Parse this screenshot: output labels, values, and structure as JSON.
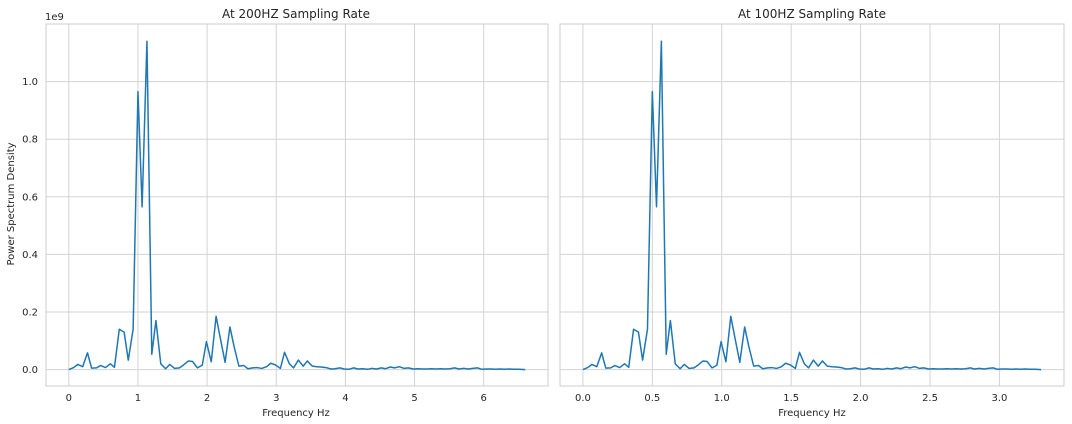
{
  "chart_data": [
    {
      "type": "line",
      "title": "At 200HZ Sampling Rate",
      "xlabel": "Frequency Hz",
      "ylabel": "Power Spectrum Density",
      "y_offset_label": "1e9",
      "xlim": [
        -0.33,
        6.93
      ],
      "ylim": [
        -0.057,
        1.2
      ],
      "xticks": [
        0,
        1,
        2,
        3,
        4,
        5,
        6
      ],
      "xtick_labels": [
        "0",
        "1",
        "2",
        "3",
        "4",
        "5",
        "6"
      ],
      "yticks": [
        0.0,
        0.2,
        0.4,
        0.6,
        0.8,
        1.0
      ],
      "ytick_labels": [
        "0.0",
        "0.2",
        "0.4",
        "0.6",
        "0.8",
        "1.0"
      ],
      "grid": true,
      "color": "#1f77b4",
      "series": [
        {
          "x": [
            0,
            0.07,
            0.13,
            0.2,
            0.27,
            0.33,
            0.4,
            0.46,
            0.53,
            0.6,
            0.66,
            0.73,
            0.8,
            0.86,
            0.93,
            1.0,
            1.06,
            1.13,
            1.2,
            1.26,
            1.33,
            1.4,
            1.46,
            1.53,
            1.6,
            1.66,
            1.73,
            1.79,
            1.86,
            1.93,
            1.99,
            2.06,
            2.13,
            2.19,
            2.26,
            2.33,
            2.39,
            2.46,
            2.53,
            2.59,
            2.66,
            2.72,
            2.79,
            2.86,
            2.92,
            2.99,
            3.06,
            3.12,
            3.19,
            3.25,
            3.32,
            3.39,
            3.45,
            3.52,
            3.59,
            3.65,
            3.72,
            3.79,
            3.85,
            3.92,
            3.98,
            4.05,
            4.12,
            4.18,
            4.25,
            4.32,
            4.38,
            4.45,
            4.52,
            4.58,
            4.65,
            4.71,
            4.78,
            4.85,
            4.91,
            4.98,
            5.05,
            5.11,
            5.18,
            5.24,
            5.31,
            5.38,
            5.44,
            5.51,
            5.58,
            5.64,
            5.71,
            5.78,
            5.84,
            5.91,
            5.97,
            6.04,
            6.11,
            6.17,
            6.24,
            6.31,
            6.37,
            6.44,
            6.51,
            6.6
          ],
          "y": [
            0.0,
            0.007,
            0.018,
            0.01,
            0.058,
            0.005,
            0.006,
            0.014,
            0.007,
            0.02,
            0.008,
            0.14,
            0.13,
            0.033,
            0.14,
            0.965,
            0.565,
            1.14,
            0.053,
            0.17,
            0.02,
            0.003,
            0.018,
            0.004,
            0.006,
            0.016,
            0.03,
            0.028,
            0.006,
            0.015,
            0.097,
            0.027,
            0.185,
            0.11,
            0.025,
            0.148,
            0.08,
            0.012,
            0.014,
            0.003,
            0.006,
            0.007,
            0.004,
            0.01,
            0.022,
            0.016,
            0.004,
            0.06,
            0.02,
            0.006,
            0.033,
            0.012,
            0.03,
            0.012,
            0.01,
            0.009,
            0.007,
            0.002,
            0.003,
            0.006,
            0.002,
            0.001,
            0.006,
            0.002,
            0.003,
            0.001,
            0.004,
            0.002,
            0.006,
            0.003,
            0.009,
            0.006,
            0.01,
            0.004,
            0.006,
            0.002,
            0.003,
            0.002,
            0.002,
            0.003,
            0.002,
            0.003,
            0.002,
            0.003,
            0.006,
            0.002,
            0.004,
            0.002,
            0.004,
            0.006,
            0.001,
            0.002,
            0.002,
            0.001,
            0.002,
            0.001,
            0.002,
            0.001,
            0.001,
            0.0
          ]
        }
      ]
    },
    {
      "type": "line",
      "title": "At 100HZ Sampling Rate",
      "xlabel": "Frequency Hz",
      "ylabel": "",
      "xlim": [
        -0.165,
        3.465
      ],
      "ylim": [
        -0.057,
        1.2
      ],
      "xticks": [
        0.0,
        0.5,
        1.0,
        1.5,
        2.0,
        2.5,
        3.0
      ],
      "xtick_labels": [
        "0.0",
        "0.5",
        "1.0",
        "1.5",
        "2.0",
        "2.5",
        "3.0"
      ],
      "yticks": [
        0.0,
        0.2,
        0.4,
        0.6,
        0.8,
        1.0
      ],
      "grid": true,
      "color": "#1f77b4",
      "series": [
        {
          "x": [
            0,
            0.035,
            0.065,
            0.1,
            0.135,
            0.165,
            0.2,
            0.23,
            0.265,
            0.3,
            0.33,
            0.365,
            0.4,
            0.43,
            0.465,
            0.5,
            0.53,
            0.565,
            0.6,
            0.63,
            0.665,
            0.7,
            0.73,
            0.765,
            0.8,
            0.83,
            0.865,
            0.895,
            0.93,
            0.965,
            0.995,
            1.03,
            1.065,
            1.095,
            1.13,
            1.165,
            1.195,
            1.23,
            1.265,
            1.295,
            1.33,
            1.36,
            1.395,
            1.43,
            1.46,
            1.495,
            1.53,
            1.56,
            1.595,
            1.625,
            1.66,
            1.695,
            1.725,
            1.76,
            1.795,
            1.825,
            1.86,
            1.895,
            1.925,
            1.96,
            1.99,
            2.025,
            2.06,
            2.09,
            2.125,
            2.16,
            2.19,
            2.225,
            2.26,
            2.29,
            2.325,
            2.355,
            2.39,
            2.425,
            2.455,
            2.49,
            2.525,
            2.555,
            2.59,
            2.62,
            2.655,
            2.69,
            2.72,
            2.755,
            2.79,
            2.82,
            2.855,
            2.89,
            2.92,
            2.955,
            2.985,
            3.02,
            3.055,
            3.085,
            3.12,
            3.155,
            3.185,
            3.22,
            3.255,
            3.3
          ],
          "y": [
            0.0,
            0.007,
            0.018,
            0.01,
            0.058,
            0.005,
            0.006,
            0.014,
            0.007,
            0.02,
            0.008,
            0.14,
            0.13,
            0.033,
            0.14,
            0.965,
            0.565,
            1.14,
            0.053,
            0.17,
            0.02,
            0.003,
            0.018,
            0.004,
            0.006,
            0.016,
            0.03,
            0.028,
            0.006,
            0.015,
            0.097,
            0.027,
            0.185,
            0.11,
            0.025,
            0.148,
            0.08,
            0.012,
            0.014,
            0.003,
            0.006,
            0.007,
            0.004,
            0.01,
            0.022,
            0.016,
            0.004,
            0.06,
            0.02,
            0.006,
            0.033,
            0.012,
            0.03,
            0.012,
            0.01,
            0.009,
            0.007,
            0.002,
            0.003,
            0.006,
            0.002,
            0.001,
            0.006,
            0.002,
            0.003,
            0.001,
            0.004,
            0.002,
            0.006,
            0.003,
            0.009,
            0.006,
            0.01,
            0.004,
            0.006,
            0.002,
            0.003,
            0.002,
            0.002,
            0.003,
            0.002,
            0.003,
            0.002,
            0.003,
            0.006,
            0.002,
            0.004,
            0.002,
            0.004,
            0.006,
            0.001,
            0.002,
            0.002,
            0.001,
            0.002,
            0.001,
            0.002,
            0.001,
            0.001,
            0.0
          ]
        }
      ]
    }
  ]
}
